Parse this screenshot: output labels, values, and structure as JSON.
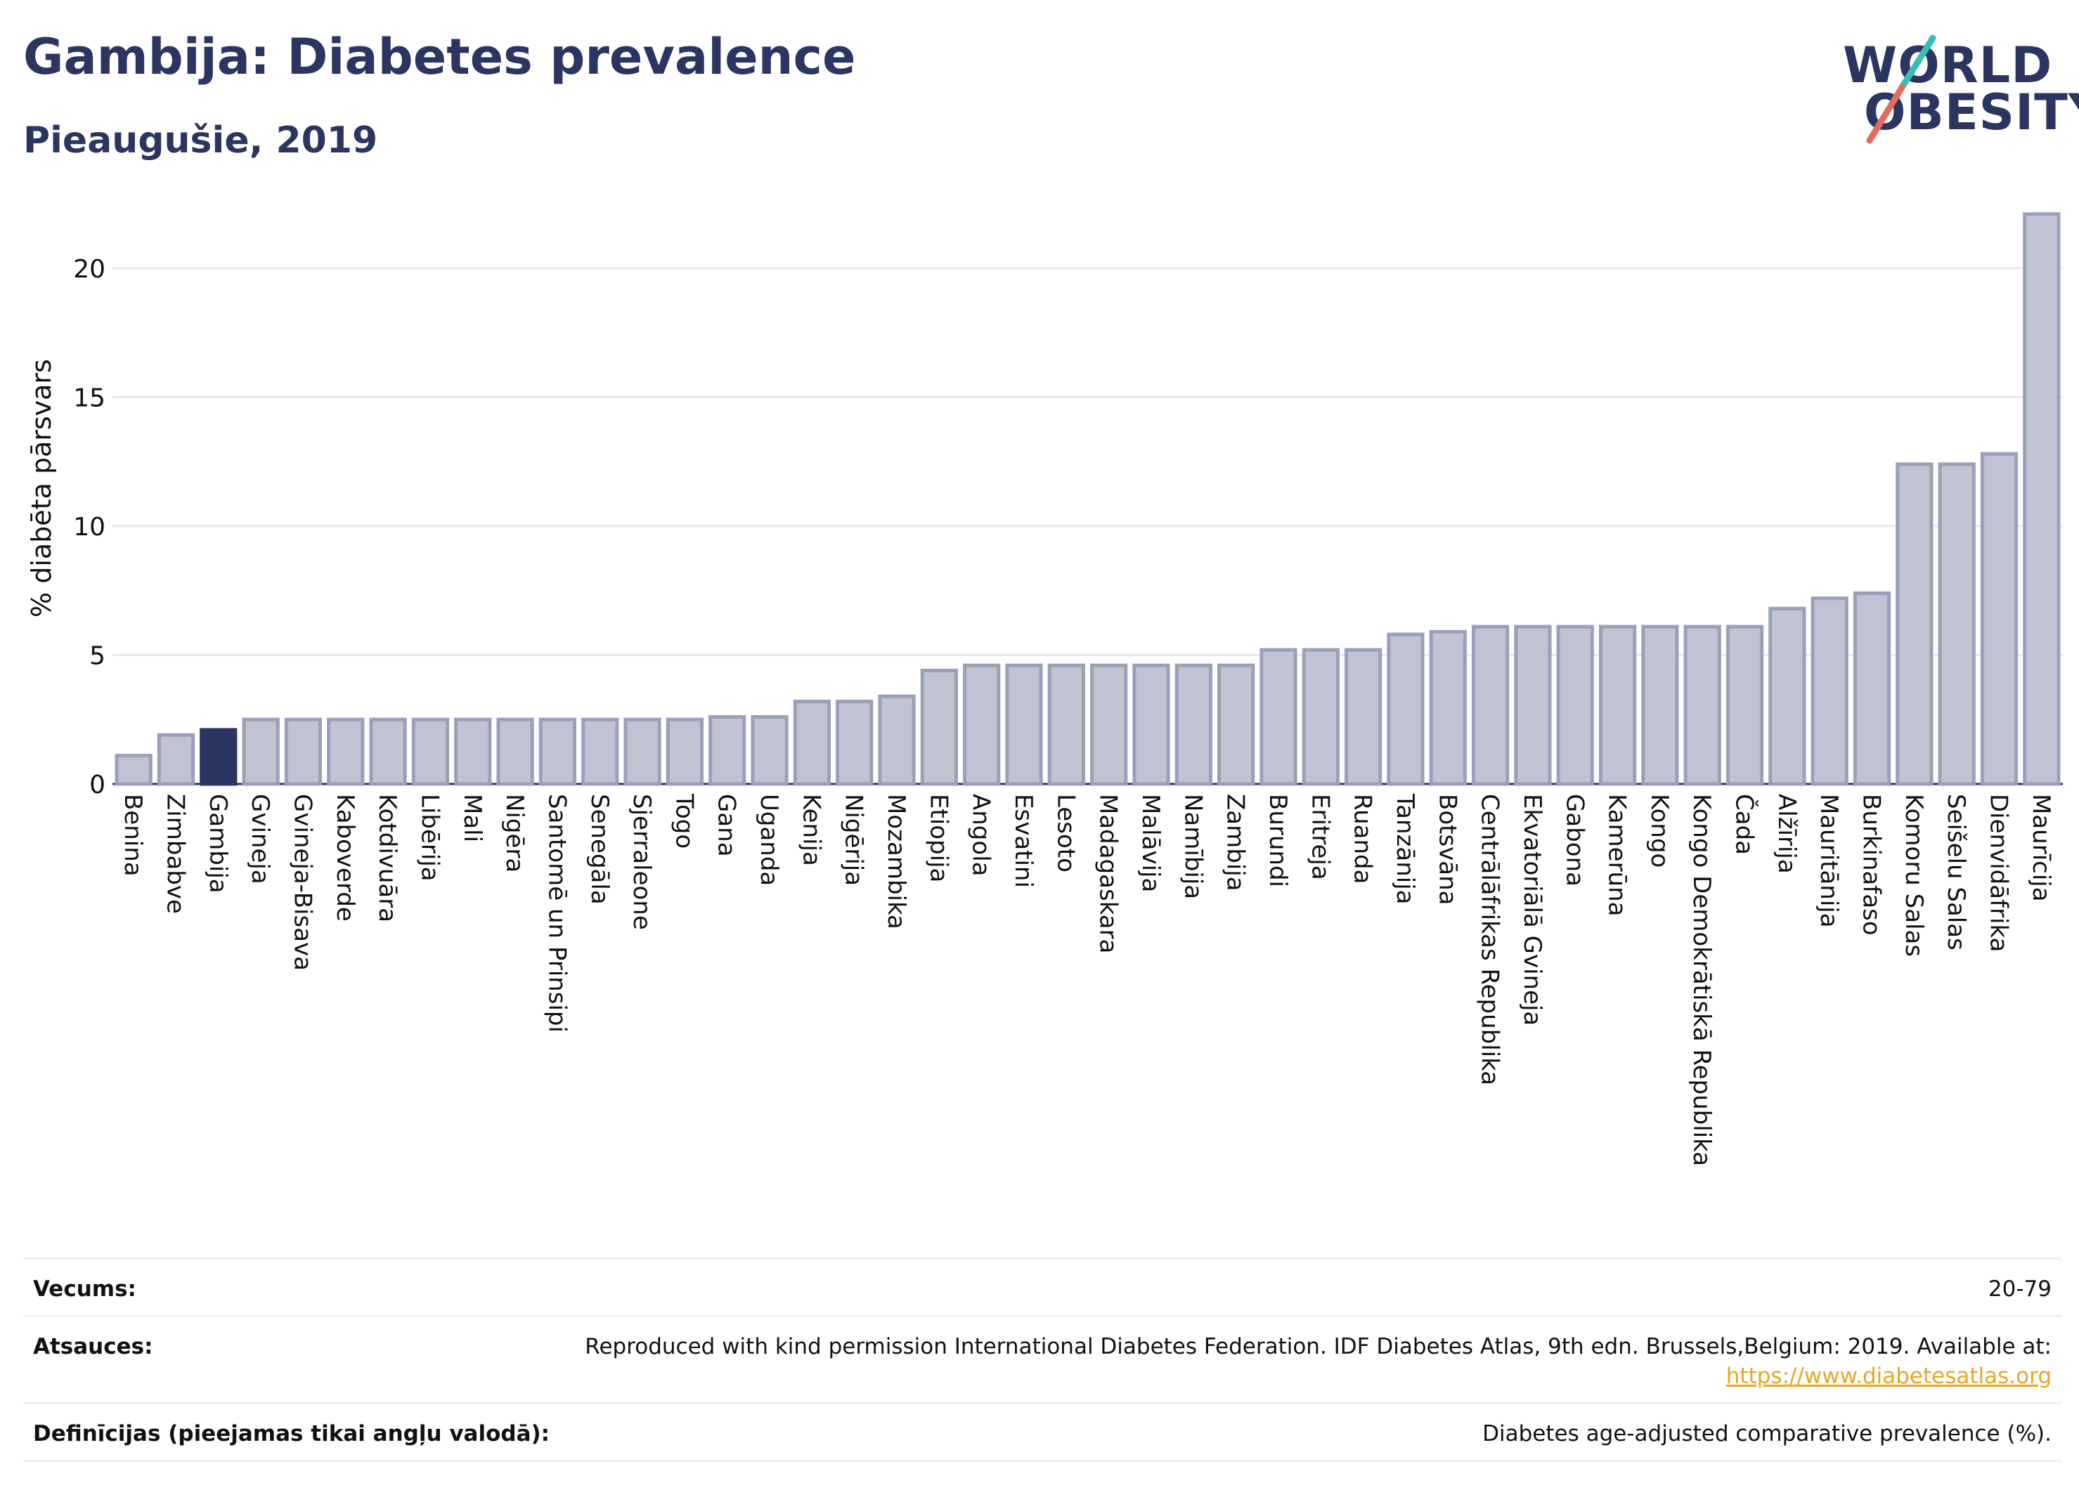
{
  "header": {
    "title": "Gambija: Diabetes prevalence",
    "subtitle": "Pieaugušie, 2019"
  },
  "logo": {
    "line1": "WORLD",
    "line2": "OBESITY"
  },
  "colors": {
    "title": "#2a3561",
    "bar_default_fill": "#bfc3d2",
    "bar_default_stroke": "#9aa0b8",
    "bar_highlight": "#2a3561",
    "grid": "#e8e8ee",
    "link": "#e5a823"
  },
  "chart_data": {
    "type": "bar",
    "ylabel": "% diabēta pārsvars",
    "ylim": [
      0,
      22.5
    ],
    "yticks": [
      0,
      5,
      10,
      15,
      20
    ],
    "grid": true,
    "highlight": "Gambija",
    "categories": [
      "Benina",
      "Zimbabve",
      "Gambija",
      "Gvineja",
      "Gvineja-Bisava",
      "Kaboverde",
      "Kotdivuāra",
      "Libērija",
      "Mali",
      "Nigēra",
      "Santomē un Prinsipi",
      "Senegāla",
      "Sjerraleone",
      "Togo",
      "Gana",
      "Uganda",
      "Kenija",
      "Nigērija",
      "Mozambika",
      "Etiopija",
      "Angola",
      "Esvatini",
      "Lesoto",
      "Madagaskara",
      "Malāvija",
      "Namībija",
      "Zambija",
      "Burundi",
      "Eritreja",
      "Ruanda",
      "Tanzānija",
      "Botsvāna",
      "Centrālāfrikas Republika",
      "Ekvatoriālā Gvineja",
      "Gabona",
      "Kamerūna",
      "Kongo",
      "Kongo Demokrātiskā Republika",
      "Čada",
      "Alžīrija",
      "Mauritānija",
      "Burkinafaso",
      "Komoru Salas",
      "Seišelu Salas",
      "Dienvidāfrika",
      "Maurīcija"
    ],
    "values": [
      1.1,
      1.9,
      2.1,
      2.5,
      2.5,
      2.5,
      2.5,
      2.5,
      2.5,
      2.5,
      2.5,
      2.5,
      2.5,
      2.5,
      2.6,
      2.6,
      3.2,
      3.2,
      3.4,
      4.4,
      4.6,
      4.6,
      4.6,
      4.6,
      4.6,
      4.6,
      4.6,
      5.2,
      5.2,
      5.2,
      5.8,
      5.9,
      6.1,
      6.1,
      6.1,
      6.1,
      6.1,
      6.1,
      6.1,
      6.8,
      7.2,
      7.4,
      12.4,
      12.4,
      12.8,
      22.1
    ]
  },
  "info": {
    "age_label": "Vecums:",
    "age_value": "20-79",
    "sources_label": "Atsauces:",
    "sources_text": "Reproduced with kind permission International Diabetes Federation. IDF Diabetes Atlas, 9th edn. Brussels,Belgium: 2019. Available at:",
    "sources_link": "https://www.diabetesatlas.org",
    "definitions_label": "Definīcijas (pieejamas tikai angļu valodā):",
    "definitions_value": "Diabetes age-adjusted comparative prevalence (%)."
  }
}
